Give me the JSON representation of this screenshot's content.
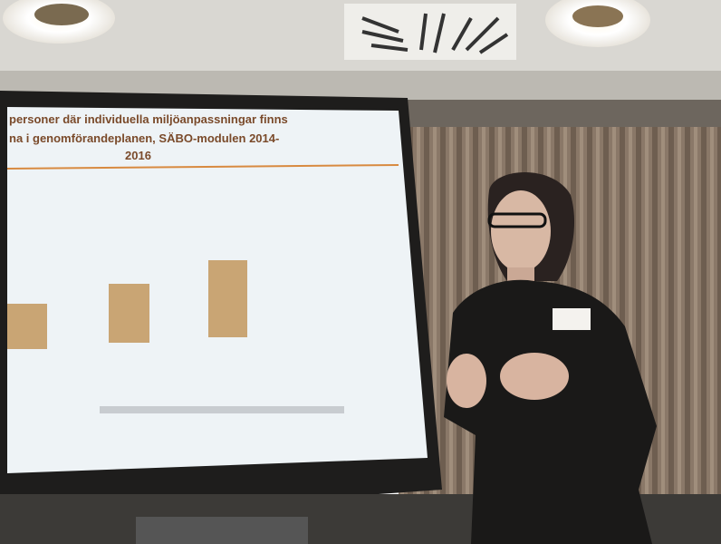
{
  "slide": {
    "title_lines": [
      "personer där individuella miljöanpassningar finns",
      "na i genomförandeplanen, SÄBO-modulen 2014-",
      "2016"
    ]
  }
}
